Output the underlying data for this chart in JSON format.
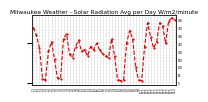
{
  "title": "Milwaukee Weather - Solar Radiation Avg per Day W/m2/minute",
  "title_fontsize": 4.2,
  "background_color": "#ffffff",
  "line_color": "#dd0000",
  "line_style": "--",
  "line_width": 0.8,
  "marker": ".",
  "marker_size": 1.2,
  "grid_color": "#999999",
  "grid_style": ":",
  "grid_linewidth": 0.4,
  "ylabel_right": [
    "400",
    "350",
    "300",
    "250",
    "200",
    "150",
    "100",
    "50",
    "0"
  ],
  "y_right_values": [
    400,
    350,
    300,
    250,
    200,
    150,
    100,
    50,
    0
  ],
  "ylim": [
    -10,
    430
  ],
  "x_labels": [
    "1,1",
    "1,2",
    "1,3",
    "1,4",
    "2,1",
    "2,2",
    "2,3",
    "2,4",
    "3,1",
    "3,2",
    "3,3",
    "3,4",
    "4,1",
    "4,2",
    "4,3",
    "4,4",
    "5,1",
    "5,2",
    "5,3",
    "5,4",
    "6,1",
    "6,2",
    "6,3",
    "6,4",
    "7,1",
    "7,2",
    "7,3",
    "7,4",
    "8,1",
    "8,2",
    "8,3",
    "8,4",
    "9,1",
    "9,2",
    "9,3",
    "9,4",
    "10,1",
    "10,2",
    "10,3",
    "10,4",
    "11,1",
    "11,2",
    "11,3",
    "11,4",
    "12,1",
    "12,2",
    "12,3",
    "12,4"
  ],
  "values": [
    350,
    300,
    220,
    25,
    20,
    200,
    260,
    150,
    30,
    25,
    280,
    310,
    180,
    160,
    230,
    270,
    200,
    210,
    170,
    230,
    210,
    250,
    210,
    185,
    170,
    160,
    280,
    170,
    20,
    15,
    20,
    250,
    330,
    280,
    100,
    20,
    15,
    230,
    380,
    290,
    220,
    260,
    380,
    360,
    250,
    390,
    410,
    400
  ]
}
